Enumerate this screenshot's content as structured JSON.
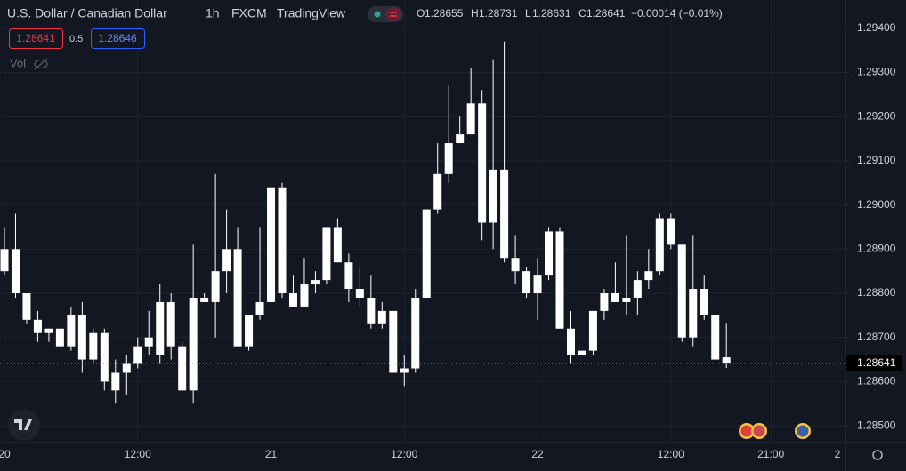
{
  "chart_data": {
    "type": "candlestick",
    "title": "U.S. Dollar / Canadian Dollar",
    "interval": "1h",
    "exchange": "FXCM",
    "source": "TradingView",
    "ohlc_keys": [
      "O",
      "H",
      "L",
      "C"
    ],
    "change": "−0.00014 (−0.01%)",
    "bid": "1.28641",
    "spread": "0.5",
    "ask": "1.28646",
    "volume_label": "Vol",
    "color": "#ffffff",
    "categories": [
      "20",
      null,
      null,
      null,
      null,
      null,
      null,
      null,
      null,
      null,
      null,
      null,
      "12:00",
      null,
      null,
      null,
      null,
      null,
      null,
      null,
      null,
      null,
      null,
      null,
      "21",
      null,
      null,
      null,
      null,
      null,
      null,
      null,
      null,
      null,
      null,
      null,
      "12:00",
      null,
      null,
      null,
      null,
      null,
      null,
      null,
      null,
      null,
      null,
      null,
      "22",
      null,
      null,
      null,
      null,
      null,
      null,
      null,
      null,
      null,
      null,
      null,
      "12:00",
      null,
      null,
      null,
      null,
      null,
      null,
      null,
      null,
      "21:00",
      null,
      null,
      null,
      null,
      null,
      "2"
    ],
    "open": [
      1.2885,
      1.289,
      1.288,
      1.2874,
      1.2871,
      1.2872,
      1.2868,
      1.2875,
      1.2865,
      1.2871,
      1.2858,
      1.2862,
      1.2864,
      1.2868,
      1.2866,
      1.2878,
      1.2868,
      1.2858,
      1.2879,
      1.2878,
      1.2885,
      1.289,
      1.2868,
      1.2875,
      1.2878,
      1.2904,
      1.288,
      1.2877,
      1.2882,
      1.2883,
      1.2895,
      1.2887,
      1.2881,
      1.2879,
      1.2873,
      1.2876,
      1.2862,
      1.2863,
      1.2879,
      1.2899,
      1.2907,
      1.2914,
      1.2916,
      1.2923,
      1.2896,
      1.2908,
      1.2888,
      1.2885,
      1.288,
      1.2884,
      1.2894,
      1.2872,
      1.2866,
      1.2867,
      1.2876,
      1.288,
      1.2878,
      1.2879,
      1.2883,
      1.2885,
      1.2897,
      1.2891,
      1.287,
      1.2881,
      1.2875,
      1.28655,
      null,
      null,
      null,
      null,
      null,
      null,
      null,
      null,
      null,
      null
    ],
    "high": [
      1.2895,
      1.2898,
      1.288,
      1.2876,
      1.2872,
      1.2872,
      1.2877,
      1.2878,
      1.2872,
      1.2872,
      1.2865,
      1.2866,
      1.287,
      1.2876,
      1.2882,
      1.288,
      1.2869,
      1.2891,
      1.288,
      1.2907,
      1.2899,
      1.2895,
      1.2875,
      1.2895,
      1.2906,
      1.2905,
      1.2884,
      1.2888,
      1.2885,
      1.2895,
      1.2897,
      1.2889,
      1.2886,
      1.2884,
      1.2878,
      1.2876,
      1.2866,
      1.2881,
      1.2899,
      1.2914,
      1.2927,
      1.292,
      1.2931,
      1.2926,
      1.2933,
      1.2937,
      1.2893,
      1.2886,
      1.2888,
      1.2895,
      1.2895,
      1.2876,
      1.2867,
      1.2876,
      1.2881,
      1.2887,
      1.2893,
      1.2885,
      1.289,
      1.2898,
      1.2898,
      1.2891,
      1.2893,
      1.2884,
      1.2875,
      1.28731,
      null,
      null,
      null,
      null,
      null,
      null,
      null,
      null,
      null,
      null
    ],
    "low": [
      1.2884,
      1.2879,
      1.2873,
      1.2869,
      1.2869,
      1.2868,
      1.2867,
      1.2862,
      1.2864,
      1.2858,
      1.2855,
      1.2857,
      1.2863,
      1.2866,
      1.2864,
      1.2865,
      1.2858,
      1.2855,
      1.2878,
      1.287,
      1.288,
      1.2868,
      1.2867,
      1.2874,
      1.2877,
      1.2879,
      1.2877,
      1.2877,
      1.288,
      1.2882,
      1.2887,
      1.2878,
      1.2877,
      1.2872,
      1.2872,
      1.2862,
      1.2859,
      1.2862,
      1.2879,
      1.2898,
      1.2905,
      1.2914,
      1.2916,
      1.2892,
      1.289,
      1.2887,
      1.2882,
      1.2879,
      1.2874,
      1.2883,
      1.2872,
      1.2864,
      1.2866,
      1.2866,
      1.2874,
      1.2879,
      1.2875,
      1.2875,
      1.2881,
      1.2884,
      1.289,
      1.2869,
      1.2868,
      1.2874,
      1.2865,
      1.28631,
      null,
      null,
      null,
      null,
      null,
      null,
      null,
      null,
      null,
      null
    ],
    "close": [
      1.289,
      1.288,
      1.2874,
      1.2871,
      1.2872,
      1.2868,
      1.2875,
      1.2865,
      1.2871,
      1.286,
      1.2862,
      1.2864,
      1.2868,
      1.287,
      1.2878,
      1.2868,
      1.2858,
      1.2879,
      1.2878,
      1.2885,
      1.289,
      1.2868,
      1.2875,
      1.2878,
      1.2904,
      1.288,
      1.2877,
      1.2882,
      1.2883,
      1.2895,
      1.2887,
      1.2881,
      1.2879,
      1.2873,
      1.2876,
      1.2862,
      1.2863,
      1.2879,
      1.2899,
      1.2907,
      1.2914,
      1.2916,
      1.2923,
      1.2896,
      1.2908,
      1.2888,
      1.2885,
      1.288,
      1.2884,
      1.2894,
      1.2872,
      1.2866,
      1.2867,
      1.2876,
      1.288,
      1.2878,
      1.2879,
      1.2883,
      1.2885,
      1.2897,
      1.2891,
      1.287,
      1.2881,
      1.2875,
      1.2865,
      1.28641,
      null,
      null,
      null,
      null,
      null,
      null,
      null,
      null,
      null,
      null
    ],
    "ylim": [
      1.28462,
      1.29464
    ],
    "yticks": [
      {
        "value": 1.294,
        "label": "1.29400"
      },
      {
        "value": 1.293,
        "label": "1.29300"
      },
      {
        "value": 1.292,
        "label": "1.29200"
      },
      {
        "value": 1.291,
        "label": "1.29100"
      },
      {
        "value": 1.29,
        "label": "1.29000"
      },
      {
        "value": 1.289,
        "label": "1.28900"
      },
      {
        "value": 1.288,
        "label": "1.28800"
      },
      {
        "value": 1.287,
        "label": "1.28700"
      },
      {
        "value": 1.286,
        "label": "1.28600"
      },
      {
        "value": 1.285,
        "label": "1.28500"
      }
    ],
    "grid": true
  }
}
